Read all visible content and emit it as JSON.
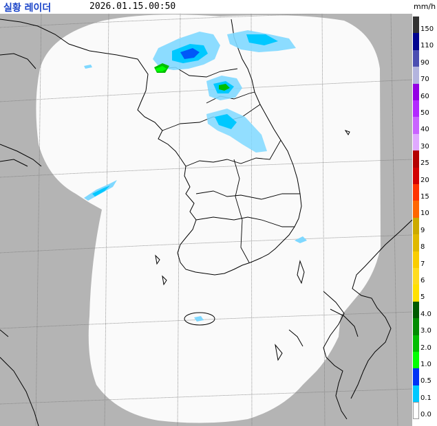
{
  "header": {
    "title": "실황 레이더",
    "timestamp": "2026.01.15.00:50",
    "unit": "mm/h"
  },
  "colors": {
    "outside_coverage": "#b4b4b4",
    "coverage": "#fafafa",
    "grid": "#7a7a7a",
    "coastline": "#000000"
  },
  "legend": {
    "items": [
      {
        "label": "150",
        "color": "#333333"
      },
      {
        "label": "110",
        "color": "#000390"
      },
      {
        "label": "90",
        "color": "#4c4eb1"
      },
      {
        "label": "70",
        "color": "#b3b4de"
      },
      {
        "label": "60",
        "color": "#9300e4"
      },
      {
        "label": "50",
        "color": "#b229ff"
      },
      {
        "label": "40",
        "color": "#c963ff"
      },
      {
        "label": "30",
        "color": "#e0a9ff"
      },
      {
        "label": "25",
        "color": "#b40000"
      },
      {
        "label": "20",
        "color": "#d20000"
      },
      {
        "label": "15",
        "color": "#ff3300"
      },
      {
        "label": "10",
        "color": "#ff6600"
      },
      {
        "label": "9",
        "color": "#ccaa00"
      },
      {
        "label": "8",
        "color": "#e0b900"
      },
      {
        "label": "7",
        "color": "#f9cd00"
      },
      {
        "label": "6",
        "color": "#ffdc1f"
      },
      {
        "label": "5",
        "color": "#ffe100"
      },
      {
        "label": "4.0",
        "color": "#005a00"
      },
      {
        "label": "3.0",
        "color": "#008c00"
      },
      {
        "label": "2.0",
        "color": "#00be00"
      },
      {
        "label": "1.0",
        "color": "#00ff00"
      },
      {
        "label": "0.5",
        "color": "#0033f5"
      },
      {
        "label": "0.1",
        "color": "#00c8ff"
      },
      {
        "label": "0.0",
        "color": "#ffffff"
      }
    ]
  }
}
